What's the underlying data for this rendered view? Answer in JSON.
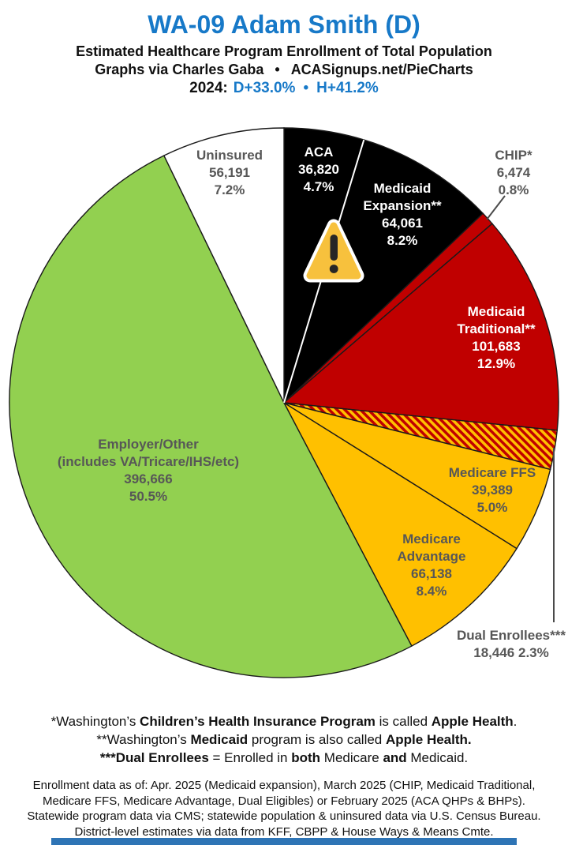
{
  "header": {
    "title": "WA-09 Adam Smith (D)",
    "subtitle": "Estimated Healthcare Program Enrollment of Total Population",
    "credit_left": "Graphs via Charles Gaba",
    "credit_sep": "•",
    "credit_right": "ACASignups.net/PieCharts",
    "partisan_prefix": "2024:",
    "partisan_dem": "D+33.0%",
    "partisan_sep": "•",
    "partisan_house": "H+41.2%"
  },
  "chart_data": {
    "type": "pie",
    "title": "Estimated Healthcare Program Enrollment of Total Population",
    "start_angle_deg": 0,
    "direction": "clockwise",
    "slices": [
      {
        "name": "ACA",
        "value": 36820,
        "pct": 4.7,
        "color": "#000000",
        "text_color": "#ffffff",
        "lines": [
          "ACA",
          "36,820",
          "4.7%"
        ]
      },
      {
        "name": "Medicaid Expansion",
        "value": 64061,
        "pct": 8.2,
        "color": "#000000",
        "text_color": "#ffffff",
        "lines": [
          "Medicaid",
          "Expansion**",
          "64,061",
          "8.2%"
        ]
      },
      {
        "name": "CHIP",
        "value": 6474,
        "pct": 0.8,
        "color": "#C00000",
        "text_color": "#575757",
        "label_outside": true,
        "lines": [
          "CHIP*",
          "6,474",
          "0.8%"
        ]
      },
      {
        "name": "Medicaid Traditional",
        "value": 101683,
        "pct": 12.9,
        "color": "#C00000",
        "text_color": "#ffffff",
        "lines": [
          "Medicaid",
          "Traditional**",
          "101,683",
          "12.9%"
        ]
      },
      {
        "name": "Dual Enrollees",
        "value": 18446,
        "pct": 2.3,
        "color": "pattern",
        "pattern": {
          "stripe1": "#C00000",
          "stripe2": "#FFC000"
        },
        "text_color": "#575757",
        "label_outside": true,
        "lines": [
          "Dual Enrollees***",
          "18,446 2.3%"
        ]
      },
      {
        "name": "Medicare FFS",
        "value": 39389,
        "pct": 5.0,
        "color": "#FFC000",
        "text_color": "#575757",
        "lines": [
          "Medicare FFS",
          "39,389",
          "5.0%"
        ]
      },
      {
        "name": "Medicare Advantage",
        "value": 66138,
        "pct": 8.4,
        "color": "#FFC000",
        "text_color": "#575757",
        "lines": [
          "Medicare",
          "Advantage",
          "66,138",
          "8.4%"
        ]
      },
      {
        "name": "Employer/Other",
        "value": 396666,
        "pct": 50.5,
        "color": "#92D050",
        "text_color": "#575757",
        "lines": [
          "Employer/Other",
          "(includes VA/Tricare/IHS/etc)",
          "396,666",
          "50.5%"
        ]
      },
      {
        "name": "Uninsured",
        "value": 56191,
        "pct": 7.2,
        "color": "#FFFFFF",
        "text_color": "#575757",
        "lines": [
          "Uninsured",
          "56,191",
          "7.2%"
        ]
      }
    ]
  },
  "icons": {
    "warning": "warning-triangle-icon"
  },
  "footnotes": [
    [
      {
        "t": "*Washington’s "
      },
      {
        "t": "Children’s Health Insurance Program",
        "b": true
      },
      {
        "t": " is called "
      },
      {
        "t": "Apple Health",
        "b": true
      },
      {
        "t": "."
      }
    ],
    [
      {
        "t": "**Washington’s "
      },
      {
        "t": "Medicaid",
        "b": true
      },
      {
        "t": " program is also called "
      },
      {
        "t": "Apple Health.",
        "b": true
      }
    ],
    [
      {
        "t": "***Dual Enrollees",
        "b": true
      },
      {
        "t": " = Enrolled in "
      },
      {
        "t": "both",
        "b": true
      },
      {
        "t": " Medicare "
      },
      {
        "t": "and",
        "b": true
      },
      {
        "t": " Medicaid."
      }
    ]
  ],
  "source_note_lines": [
    "Enrollment data as of: Apr. 2025 (Medicaid expansion), March 2025 (CHIP, Medicaid Traditional,",
    "Medicare FFS, Medicare Advantage, Dual Eligibles) or February 2025 (ACA QHPs & BHPs).",
    "Statewide program data via CMS; statewide population & uninsured data via U.S. Census Bureau.",
    "District-level estimates via data from KFF, CBPP & House Ways & Means Cmte."
  ],
  "colors": {
    "title_blue": "#1779C8",
    "slice_black": "#000000",
    "slice_red": "#C00000",
    "slice_gold": "#FFC000",
    "slice_green": "#92D050",
    "slice_white": "#FFFFFF",
    "label_gray": "#575757",
    "footer_bar_blue": "#2E74B5",
    "warning_fill": "#F7C13D"
  }
}
